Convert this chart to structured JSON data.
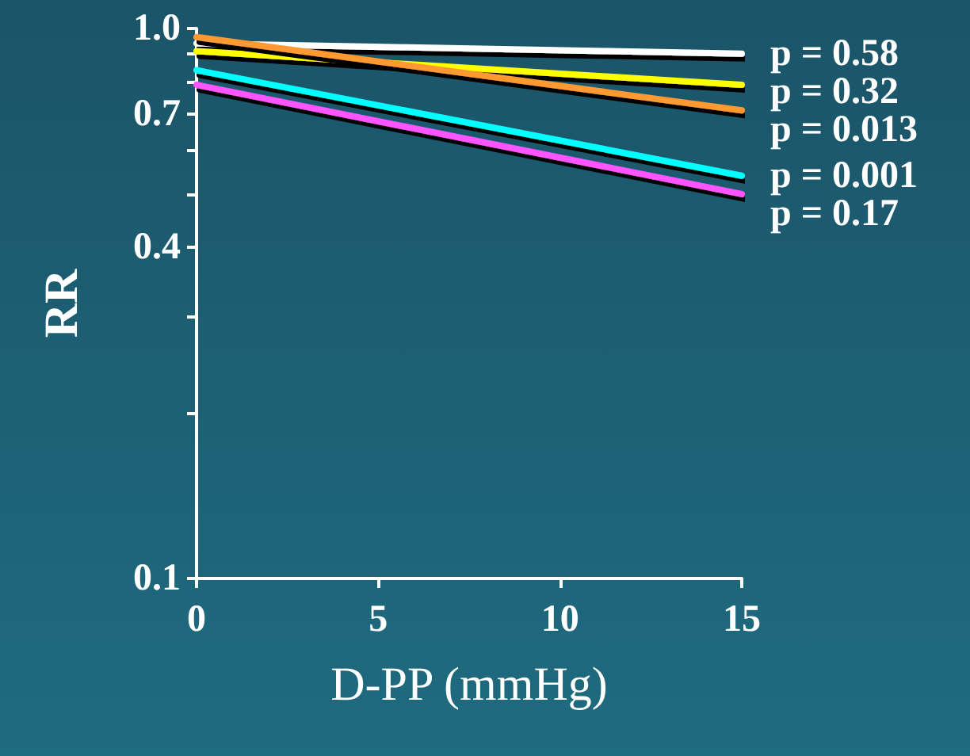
{
  "chart_data": {
    "type": "line",
    "xlabel": "D-PP (mmHg)",
    "ylabel": "RR",
    "log": "y",
    "x": [
      0,
      15
    ],
    "xlim": [
      0,
      15
    ],
    "xticks": [
      0,
      5,
      10,
      15
    ],
    "ylim": [
      0.1,
      1
    ],
    "yticks": [
      {
        "value": 0.1,
        "label": "0.1"
      },
      {
        "value": 0.2,
        "label": null
      },
      {
        "value": 0.3,
        "label": null
      },
      {
        "value": 0.4,
        "label": "0.4"
      },
      {
        "value": 0.5,
        "label": null
      },
      {
        "value": 0.6,
        "label": null
      },
      {
        "value": 0.7,
        "label": "0.7"
      },
      {
        "value": 0.8,
        "label": null
      },
      {
        "value": 0.9,
        "label": null
      },
      {
        "value": 1,
        "label": "1.0"
      }
    ],
    "grid": false,
    "legend": false,
    "marker": "none",
    "line_style": "solid",
    "series": [
      {
        "name": "p = 0.58",
        "color": "#ffffff",
        "values": [
          0.94,
          0.9
        ]
      },
      {
        "name": "p = 0.32",
        "color": "#ffff00",
        "values": [
          0.91,
          0.79
        ]
      },
      {
        "name": "p = 0.013",
        "color": "#ff9933",
        "values": [
          0.965,
          0.71
        ]
      },
      {
        "name": "p = 0.001",
        "color": "#00ffff",
        "values": [
          0.84,
          0.54
        ]
      },
      {
        "name": "p = 0.17",
        "color": "#ff55ff",
        "values": [
          0.79,
          0.5
        ]
      }
    ]
  }
}
